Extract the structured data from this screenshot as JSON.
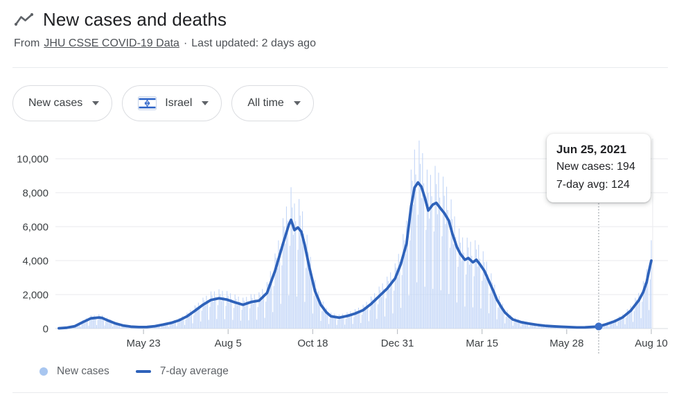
{
  "header": {
    "title": "New cases and deaths",
    "source_prefix": "From",
    "source_link": "JHU CSSE COVID-19 Data",
    "separator": "·",
    "last_updated": "Last updated: 2 days ago"
  },
  "filters": [
    {
      "id": "metric",
      "label": "New cases",
      "has_flag": false
    },
    {
      "id": "region",
      "label": "Israel",
      "has_flag": true
    },
    {
      "id": "time_range",
      "label": "All time",
      "has_flag": false
    }
  ],
  "legend": [
    {
      "label": "New cases",
      "swatch": "dot",
      "color": "#a8c6f0"
    },
    {
      "label": "7-day average",
      "swatch": "line",
      "color": "#2e62ba"
    }
  ],
  "colors": {
    "bars": "#c3d6f7",
    "avg_line": "#2e62ba",
    "marker": "#3b6fc9",
    "grid": "#e8eaed",
    "grid_zero": "#dadce0",
    "tick": "#bdc1c6",
    "axis_text": "#3c4043",
    "dotted_guide": "#9aa0a6",
    "flag_blue": "#2c63c7"
  },
  "chart_data": {
    "type": "bar+line",
    "title": "New cases and deaths — Israel — All time",
    "xlabel": "",
    "ylabel": "",
    "ylim": [
      0,
      11600
    ],
    "x_range_days": 518,
    "grid": true,
    "legend_position": "bottom-left",
    "y_ticks": [
      {
        "value": 0,
        "label": "0"
      },
      {
        "value": 2000,
        "label": "2,000"
      },
      {
        "value": 4000,
        "label": "4,000"
      },
      {
        "value": 6000,
        "label": "6,000"
      },
      {
        "value": 8000,
        "label": "8,000"
      },
      {
        "value": 10000,
        "label": "10,000"
      }
    ],
    "x_ticks": [
      {
        "day": 74,
        "label": "May 23"
      },
      {
        "day": 148,
        "label": "Aug 5"
      },
      {
        "day": 222,
        "label": "Oct 18"
      },
      {
        "day": 296,
        "label": "Dec 31"
      },
      {
        "day": 370,
        "label": "Mar 15"
      },
      {
        "day": 444,
        "label": "May 28"
      },
      {
        "day": 518,
        "label": "Aug 10"
      }
    ],
    "series": [
      {
        "name": "New cases",
        "type": "bar",
        "color": "#c3d6f7",
        "note": "daily bars oscillate around the 7-day average with weekend dips",
        "weekday_pattern": [
          1.3,
          1.15,
          0.92,
          1.27,
          1.08,
          0.32,
          0.78
        ]
      },
      {
        "name": "7-day average",
        "type": "line",
        "color": "#2e62ba",
        "points": [
          [
            0,
            15
          ],
          [
            7,
            50
          ],
          [
            14,
            140
          ],
          [
            21,
            380
          ],
          [
            28,
            600
          ],
          [
            35,
            650
          ],
          [
            38,
            620
          ],
          [
            42,
            500
          ],
          [
            49,
            310
          ],
          [
            56,
            180
          ],
          [
            63,
            110
          ],
          [
            70,
            85
          ],
          [
            77,
            90
          ],
          [
            84,
            140
          ],
          [
            91,
            230
          ],
          [
            98,
            330
          ],
          [
            105,
            480
          ],
          [
            112,
            720
          ],
          [
            119,
            1050
          ],
          [
            126,
            1400
          ],
          [
            133,
            1680
          ],
          [
            140,
            1780
          ],
          [
            147,
            1700
          ],
          [
            154,
            1540
          ],
          [
            161,
            1400
          ],
          [
            168,
            1560
          ],
          [
            175,
            1640
          ],
          [
            182,
            2100
          ],
          [
            189,
            3400
          ],
          [
            196,
            5000
          ],
          [
            201,
            6100
          ],
          [
            203,
            6400
          ],
          [
            206,
            5800
          ],
          [
            209,
            5950
          ],
          [
            212,
            5700
          ],
          [
            215,
            4900
          ],
          [
            219,
            3600
          ],
          [
            224,
            2200
          ],
          [
            229,
            1400
          ],
          [
            234,
            950
          ],
          [
            238,
            720
          ],
          [
            245,
            640
          ],
          [
            252,
            740
          ],
          [
            259,
            880
          ],
          [
            266,
            1080
          ],
          [
            273,
            1450
          ],
          [
            280,
            1900
          ],
          [
            287,
            2350
          ],
          [
            294,
            2950
          ],
          [
            299,
            3800
          ],
          [
            304,
            5000
          ],
          [
            308,
            7200
          ],
          [
            311,
            8300
          ],
          [
            314,
            8600
          ],
          [
            317,
            8350
          ],
          [
            320,
            7700
          ],
          [
            323,
            6950
          ],
          [
            327,
            7300
          ],
          [
            330,
            7400
          ],
          [
            334,
            7050
          ],
          [
            337,
            6800
          ],
          [
            341,
            6350
          ],
          [
            344,
            5600
          ],
          [
            348,
            4800
          ],
          [
            351,
            4400
          ],
          [
            355,
            4050
          ],
          [
            358,
            4150
          ],
          [
            362,
            3900
          ],
          [
            365,
            4050
          ],
          [
            368,
            3800
          ],
          [
            372,
            3400
          ],
          [
            376,
            2800
          ],
          [
            380,
            2200
          ],
          [
            383,
            1700
          ],
          [
            387,
            1250
          ],
          [
            390,
            950
          ],
          [
            394,
            700
          ],
          [
            397,
            530
          ],
          [
            404,
            380
          ],
          [
            411,
            290
          ],
          [
            418,
            220
          ],
          [
            425,
            165
          ],
          [
            432,
            130
          ],
          [
            439,
            105
          ],
          [
            446,
            85
          ],
          [
            453,
            65
          ],
          [
            460,
            70
          ],
          [
            465,
            90
          ],
          [
            472,
            124
          ],
          [
            479,
            260
          ],
          [
            486,
            430
          ],
          [
            493,
            660
          ],
          [
            500,
            1050
          ],
          [
            507,
            1650
          ],
          [
            511,
            2150
          ],
          [
            514,
            2750
          ],
          [
            516,
            3400
          ],
          [
            518,
            4000
          ]
        ]
      }
    ],
    "highlight": {
      "day": 472,
      "date": "Jun 25, 2021",
      "new_cases": 194,
      "avg": 124,
      "label_new_cases": "New cases: 194",
      "label_avg": "7-day avg: 124"
    }
  }
}
